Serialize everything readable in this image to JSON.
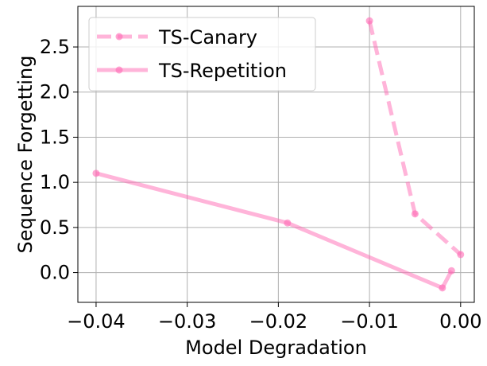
{
  "chart_data": {
    "type": "line",
    "title": "",
    "xlabel": "Model Degradation",
    "ylabel": "Sequence Forgetting",
    "xlim": [
      -0.042,
      0.0015
    ],
    "ylim": [
      -0.33,
      2.95
    ],
    "xticks": [
      -0.04,
      -0.03,
      -0.02,
      -0.01,
      0.0
    ],
    "xtick_labels": [
      "−0.04",
      "−0.03",
      "−0.02",
      "−0.01",
      "0.00"
    ],
    "yticks": [
      0.0,
      0.5,
      1.0,
      1.5,
      2.0,
      2.5
    ],
    "ytick_labels": [
      "0.0",
      "0.5",
      "1.0",
      "1.5",
      "2.0",
      "2.5"
    ],
    "grid": true,
    "legend_position": "top-left",
    "series": [
      {
        "name": "TS-Canary",
        "color": "#ff69b4",
        "linestyle": "dashed",
        "x": [
          -0.01,
          -0.005,
          0.0
        ],
        "y": [
          2.79,
          0.65,
          0.2
        ]
      },
      {
        "name": "TS-Repetition",
        "color": "#ff69b4",
        "linestyle": "solid",
        "x": [
          -0.04,
          -0.019,
          -0.002,
          -0.001
        ],
        "y": [
          1.1,
          0.55,
          -0.17,
          0.02
        ]
      }
    ]
  }
}
